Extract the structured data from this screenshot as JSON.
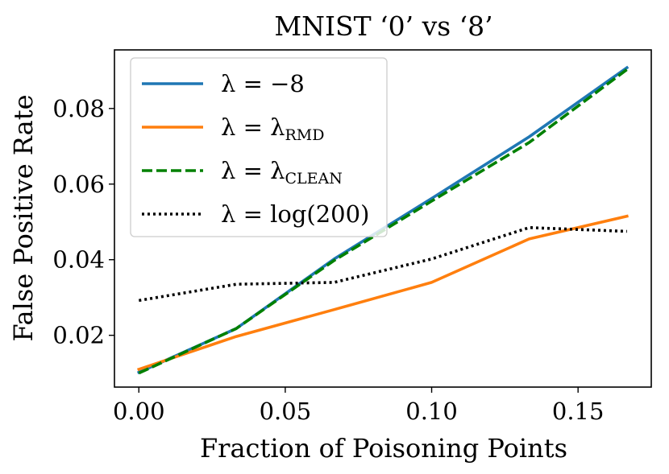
{
  "chart_data": {
    "type": "line",
    "title": "MNIST ‘0’ vs ‘8’",
    "xlabel": "Fraction of Poisoning Points",
    "ylabel": "False Positive Rate",
    "xlim": [
      -0.00833,
      0.175
    ],
    "ylim": [
      0.0063,
      0.0955
    ],
    "xticks": [
      0.0,
      0.05,
      0.1,
      0.15
    ],
    "xtick_labels": [
      "0.00",
      "0.05",
      "0.10",
      "0.15"
    ],
    "yticks": [
      0.02,
      0.04,
      0.06,
      0.08
    ],
    "ytick_labels": [
      "0.02",
      "0.04",
      "0.06",
      "0.08"
    ],
    "grid": false,
    "legend_position": "top-left",
    "x": [
      0.0,
      0.0333,
      0.0667,
      0.1,
      0.1333,
      0.1667
    ],
    "series": [
      {
        "name": "λ = −8",
        "legend_main": "λ = −8",
        "legend_sub": "",
        "color": "#1f77b4",
        "style": "solid",
        "values": [
          0.0102,
          0.0218,
          0.0402,
          0.0562,
          0.0725,
          0.0908
        ]
      },
      {
        "name": "λ = λRMD",
        "legend_main": "λ = λ",
        "legend_sub": "RMD",
        "color": "#ff7f0e",
        "style": "solid",
        "values": [
          0.011,
          0.0197,
          0.0268,
          0.034,
          0.0455,
          0.0515
        ]
      },
      {
        "name": "λ = λCLEAN",
        "legend_main": "λ = λ",
        "legend_sub": "CLEAN",
        "color": "#008000",
        "style": "dashed",
        "values": [
          0.01,
          0.0218,
          0.0398,
          0.0555,
          0.071,
          0.0903
        ]
      },
      {
        "name": "λ = log(200)",
        "legend_main": "λ = log(200)",
        "legend_sub": "",
        "color": "#000000",
        "style": "dotted",
        "values": [
          0.0292,
          0.0335,
          0.034,
          0.0402,
          0.0485,
          0.0475
        ]
      }
    ]
  }
}
